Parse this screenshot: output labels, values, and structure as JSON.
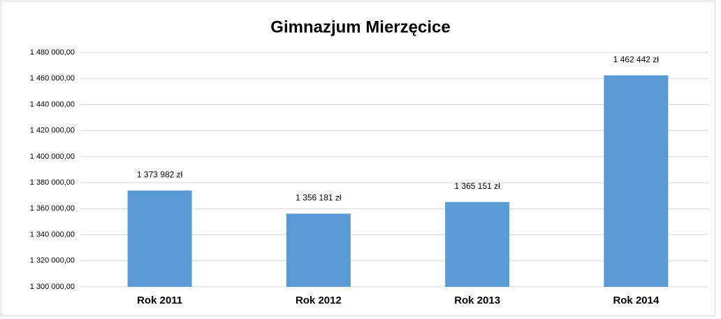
{
  "chart_data": {
    "type": "bar",
    "title": "Gimnazjum Mierzęcice",
    "categories": [
      "Rok 2011",
      "Rok 2012",
      "Rok 2013",
      "Rok 2014"
    ],
    "values": [
      1373982,
      1356181,
      1365151,
      1462442
    ],
    "value_labels": [
      "1 373 982 zł",
      "1 356 181 zł",
      "1 365 151 zł",
      "1 462 442 zł"
    ],
    "color": "#5b9bd5",
    "ylim": [
      1300000,
      1480000
    ],
    "yticks": [
      {
        "value": 1300000,
        "label": "1 300 000,00"
      },
      {
        "value": 1320000,
        "label": "1 320 000,00"
      },
      {
        "value": 1340000,
        "label": "1 340 000,00"
      },
      {
        "value": 1360000,
        "label": "1 360 000,00"
      },
      {
        "value": 1380000,
        "label": "1 380 000,00"
      },
      {
        "value": 1400000,
        "label": "1 400 000,00"
      },
      {
        "value": 1420000,
        "label": "1 420 000,00"
      },
      {
        "value": 1440000,
        "label": "1 440 000,00"
      },
      {
        "value": 1460000,
        "label": "1 460 000,00"
      },
      {
        "value": 1480000,
        "label": "1 480 000,00"
      }
    ],
    "grid": true
  }
}
